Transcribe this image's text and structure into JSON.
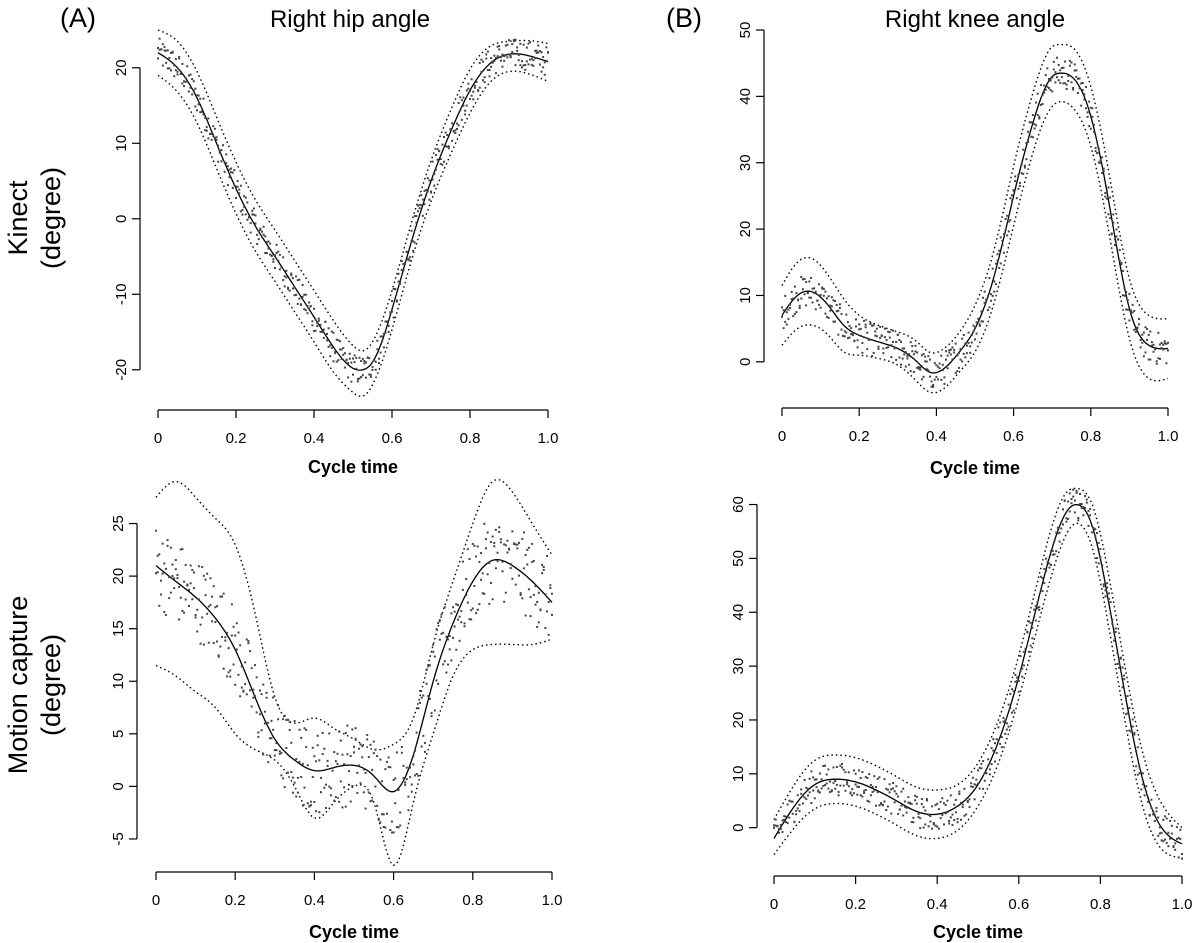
{
  "figure": {
    "panel_letters": [
      "(A)",
      "(B)"
    ],
    "column_titles": [
      "Right hip angle",
      "Right knee angle"
    ],
    "row_labels": [
      [
        "Kinect",
        "(degree)"
      ],
      [
        "Motion capture",
        "(degree)"
      ]
    ]
  },
  "chart_data": [
    {
      "type": "line",
      "title": "Right hip angle",
      "row": "Kinect",
      "xlabel": "Cycle time",
      "ylabel": "Kinect (degree)",
      "xlim": [
        0,
        1.0
      ],
      "ylim": [
        -24,
        25
      ],
      "x_ticks": [
        0,
        0.2,
        0.4,
        0.6,
        0.8,
        1.0
      ],
      "x_tick_labels": [
        "0",
        "0.2",
        "0.4",
        "0.6",
        "0.8",
        "1.0"
      ],
      "y_ticks": [
        -20,
        -10,
        0,
        10,
        20
      ],
      "y_tick_labels": [
        "-20",
        "-10",
        "0",
        "10",
        "20"
      ],
      "grid": false,
      "spread": 2,
      "series": [
        {
          "role": "mean",
          "style": "solid",
          "x": [
            0,
            0.05,
            0.1,
            0.15,
            0.2,
            0.25,
            0.3,
            0.35,
            0.4,
            0.45,
            0.5,
            0.525,
            0.55,
            0.6,
            0.65,
            0.7,
            0.75,
            0.8,
            0.85,
            0.9,
            0.95,
            1.0
          ],
          "y": [
            22,
            20,
            16,
            10,
            4,
            -1,
            -5,
            -9,
            -13,
            -17,
            -19.8,
            -20,
            -19,
            -12,
            -3,
            5,
            11.5,
            17,
            20.5,
            21.8,
            21.6,
            20.8
          ]
        },
        {
          "role": "upper-bound",
          "style": "dotted",
          "x": [
            0,
            0.05,
            0.1,
            0.15,
            0.2,
            0.25,
            0.3,
            0.35,
            0.4,
            0.45,
            0.5,
            0.525,
            0.55,
            0.6,
            0.65,
            0.7,
            0.75,
            0.8,
            0.85,
            0.9,
            0.95,
            1.0
          ],
          "y": [
            25,
            23.5,
            19.5,
            13.5,
            7.5,
            2.5,
            -1.5,
            -5.5,
            -9.5,
            -13.5,
            -16.8,
            -17.5,
            -16.3,
            -9.5,
            -0.5,
            7.7,
            14.3,
            19.8,
            22.8,
            23.5,
            23.6,
            23.2
          ]
        },
        {
          "role": "lower-bound",
          "style": "dotted",
          "x": [
            0,
            0.05,
            0.1,
            0.15,
            0.2,
            0.25,
            0.3,
            0.35,
            0.4,
            0.45,
            0.5,
            0.525,
            0.55,
            0.6,
            0.65,
            0.7,
            0.75,
            0.8,
            0.85,
            0.9,
            0.95,
            1.0
          ],
          "y": [
            19,
            16.8,
            12.7,
            6.7,
            0.7,
            -4.3,
            -8.3,
            -12.3,
            -16.3,
            -20.3,
            -23,
            -23.5,
            -22,
            -14.7,
            -5.5,
            2.3,
            8.5,
            14,
            18,
            19.5,
            19.2,
            18.2
          ]
        }
      ]
    },
    {
      "type": "line",
      "title": "Right knee angle",
      "row": "Kinect",
      "xlabel": "Cycle time",
      "ylabel": "Kinect (degree)",
      "xlim": [
        0,
        1.0
      ],
      "ylim": [
        -5,
        50
      ],
      "x_ticks": [
        0,
        0.2,
        0.4,
        0.6,
        0.8,
        1.0
      ],
      "x_tick_labels": [
        "0",
        "0.2",
        "0.4",
        "0.6",
        "0.8",
        "1.0"
      ],
      "y_ticks": [
        0,
        10,
        20,
        30,
        40,
        50
      ],
      "y_tick_labels": [
        "0",
        "10",
        "20",
        "30",
        "40",
        "50"
      ],
      "grid": false,
      "spread": 2.5,
      "series": [
        {
          "role": "mean",
          "style": "solid",
          "x": [
            0,
            0.04,
            0.08,
            0.12,
            0.16,
            0.2,
            0.25,
            0.3,
            0.35,
            0.38,
            0.42,
            0.46,
            0.5,
            0.55,
            0.6,
            0.65,
            0.7,
            0.72,
            0.75,
            0.8,
            0.85,
            0.9,
            0.95,
            1.0
          ],
          "y": [
            7,
            10,
            10.5,
            8.5,
            5.5,
            4,
            3,
            2,
            0,
            -1.5,
            -1,
            1.5,
            5,
            13,
            25,
            36,
            43,
            43.5,
            43,
            37,
            23,
            8,
            2.5,
            2
          ]
        },
        {
          "role": "upper-bound",
          "style": "dotted",
          "x": [
            0,
            0.04,
            0.08,
            0.12,
            0.16,
            0.2,
            0.25,
            0.3,
            0.35,
            0.38,
            0.42,
            0.46,
            0.5,
            0.55,
            0.6,
            0.65,
            0.7,
            0.72,
            0.75,
            0.8,
            0.85,
            0.9,
            0.95,
            1.0
          ],
          "y": [
            11.5,
            15,
            15.5,
            13,
            9.5,
            7,
            5.5,
            4.5,
            3,
            1.5,
            2,
            4.5,
            8.5,
            17,
            29.5,
            40.5,
            47.5,
            47.8,
            47.5,
            41.5,
            27.5,
            12.5,
            7,
            6.5
          ]
        },
        {
          "role": "lower-bound",
          "style": "dotted",
          "x": [
            0,
            0.04,
            0.08,
            0.12,
            0.16,
            0.2,
            0.25,
            0.3,
            0.35,
            0.38,
            0.42,
            0.46,
            0.5,
            0.55,
            0.6,
            0.65,
            0.7,
            0.72,
            0.75,
            0.8,
            0.85,
            0.9,
            0.95,
            1.0
          ],
          "y": [
            2.5,
            5,
            5.5,
            4,
            1.5,
            1,
            0.5,
            -0.5,
            -3,
            -4.5,
            -4,
            -1.5,
            1.5,
            9,
            20.5,
            31.5,
            38.5,
            39.2,
            38.5,
            32.5,
            18.5,
            3.5,
            -2.5,
            -2.5
          ]
        }
      ]
    },
    {
      "type": "line",
      "title": "Right hip angle",
      "row": "Motion capture",
      "xlabel": "Cycle time",
      "ylabel": "Motion capture (degree)",
      "xlim": [
        0,
        1.0
      ],
      "ylim": [
        -7,
        28
      ],
      "x_ticks": [
        0,
        0.2,
        0.4,
        0.6,
        0.8,
        1.0
      ],
      "x_tick_labels": [
        "0",
        "0.2",
        "0.4",
        "0.6",
        "0.8",
        "1.0"
      ],
      "y_ticks": [
        -5,
        0,
        5,
        10,
        15,
        20,
        25
      ],
      "y_tick_labels": [
        "-5",
        "0",
        "5",
        "10",
        "15",
        "20",
        "25"
      ],
      "grid": false,
      "spread": 4,
      "series": [
        {
          "role": "mean",
          "style": "solid",
          "x": [
            0,
            0.05,
            0.1,
            0.15,
            0.2,
            0.25,
            0.3,
            0.35,
            0.4,
            0.45,
            0.5,
            0.55,
            0.6,
            0.65,
            0.7,
            0.75,
            0.8,
            0.85,
            0.9,
            0.95,
            1.0
          ],
          "y": [
            21,
            19.5,
            18,
            16,
            13,
            8.5,
            4.5,
            2.5,
            1.5,
            1.8,
            2,
            1,
            -0.5,
            3,
            10,
            15.5,
            19.5,
            21.5,
            21,
            19.5,
            17.5
          ]
        },
        {
          "role": "upper-bound",
          "style": "dotted",
          "x": [
            0,
            0.05,
            0.1,
            0.15,
            0.2,
            0.25,
            0.3,
            0.35,
            0.4,
            0.45,
            0.5,
            0.55,
            0.6,
            0.65,
            0.7,
            0.75,
            0.8,
            0.85,
            0.9,
            0.95,
            1.0
          ],
          "y": [
            27.5,
            29,
            27.5,
            25.5,
            23,
            16.5,
            8.5,
            6,
            6.5,
            5.5,
            4.5,
            3.5,
            4,
            6.5,
            13.5,
            19.5,
            25,
            29,
            28,
            25,
            22
          ]
        },
        {
          "role": "lower-bound",
          "style": "dotted",
          "x": [
            0,
            0.05,
            0.1,
            0.15,
            0.2,
            0.25,
            0.3,
            0.35,
            0.4,
            0.45,
            0.5,
            0.55,
            0.6,
            0.65,
            0.7,
            0.75,
            0.8,
            0.85,
            0.9,
            0.95,
            1.0
          ],
          "y": [
            11.5,
            10.5,
            9,
            7.5,
            5,
            3.5,
            2.5,
            0,
            -3,
            -1.5,
            0,
            -1.5,
            -7.5,
            -1.5,
            5,
            10.5,
            13,
            13.5,
            13.5,
            13.5,
            14
          ]
        }
      ]
    },
    {
      "type": "line",
      "title": "Right knee angle",
      "row": "Motion capture",
      "xlabel": "Cycle time",
      "ylabel": "Motion capture (degree)",
      "xlim": [
        0,
        1.0
      ],
      "ylim": [
        -6,
        64
      ],
      "x_ticks": [
        0,
        0.2,
        0.4,
        0.6,
        0.8,
        1.0
      ],
      "x_tick_labels": [
        "0",
        "0.2",
        "0.4",
        "0.6",
        "0.8",
        "1.0"
      ],
      "y_ticks": [
        0,
        10,
        20,
        30,
        40,
        50,
        60
      ],
      "y_tick_labels": [
        "0",
        "10",
        "20",
        "30",
        "40",
        "50",
        "60"
      ],
      "grid": false,
      "spread": 3,
      "series": [
        {
          "role": "mean",
          "style": "solid",
          "x": [
            0,
            0.05,
            0.1,
            0.15,
            0.2,
            0.25,
            0.3,
            0.35,
            0.4,
            0.45,
            0.5,
            0.55,
            0.6,
            0.65,
            0.7,
            0.72,
            0.74,
            0.78,
            0.82,
            0.86,
            0.9,
            0.95,
            1.0
          ],
          "y": [
            -2,
            4,
            8,
            9,
            8.5,
            7,
            5,
            3,
            2.5,
            4,
            8,
            16,
            28,
            43,
            56,
            59,
            60,
            56,
            42,
            25,
            10,
            0,
            -3
          ]
        },
        {
          "role": "upper-bound",
          "style": "dotted",
          "x": [
            0,
            0.05,
            0.1,
            0.15,
            0.2,
            0.25,
            0.3,
            0.35,
            0.4,
            0.45,
            0.5,
            0.55,
            0.6,
            0.65,
            0.7,
            0.72,
            0.74,
            0.78,
            0.82,
            0.86,
            0.9,
            0.95,
            1.0
          ],
          "y": [
            1.5,
            8,
            12.5,
            13.5,
            13,
            11.5,
            9.5,
            7.5,
            7,
            8,
            12,
            20,
            32,
            47,
            60,
            62.5,
            63,
            60,
            47,
            30,
            15,
            4.5,
            0
          ]
        },
        {
          "role": "lower-bound",
          "style": "dotted",
          "x": [
            0,
            0.05,
            0.1,
            0.15,
            0.2,
            0.25,
            0.3,
            0.35,
            0.4,
            0.45,
            0.5,
            0.55,
            0.6,
            0.65,
            0.7,
            0.72,
            0.74,
            0.78,
            0.82,
            0.86,
            0.9,
            0.95,
            1.0
          ],
          "y": [
            -5,
            0,
            3.5,
            4.5,
            4,
            2.5,
            0.5,
            -1.5,
            -2,
            -0.5,
            4,
            12,
            24,
            38.5,
            51.5,
            55,
            56.5,
            52,
            37.5,
            20,
            5,
            -4,
            -5.5
          ]
        }
      ]
    }
  ]
}
